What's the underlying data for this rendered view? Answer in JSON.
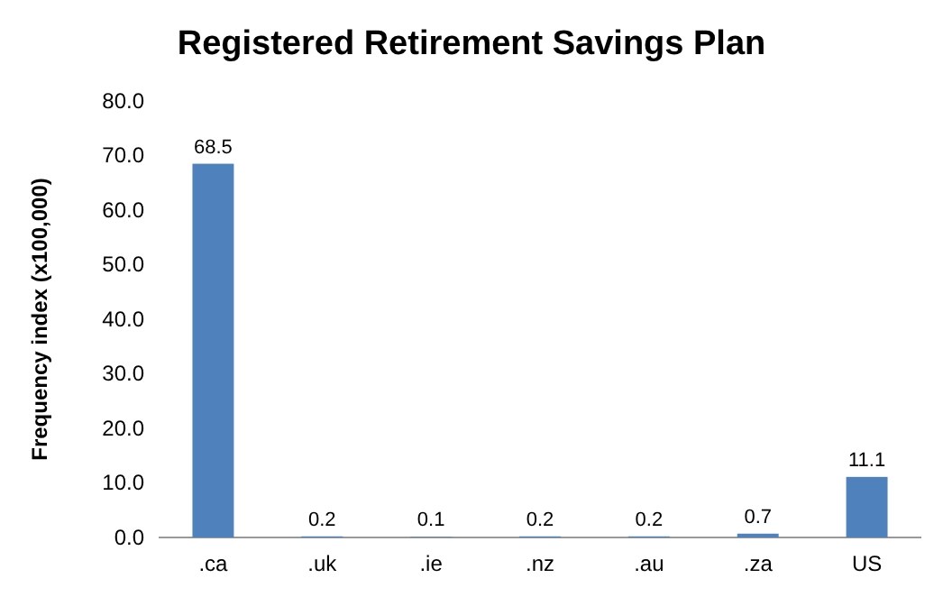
{
  "chart_data": {
    "type": "bar",
    "title": "Registered Retirement Savings Plan",
    "ylabel": "Frequency index (x100,000)",
    "categories": [
      ".ca",
      ".uk",
      ".ie",
      ".nz",
      ".au",
      ".za",
      "US"
    ],
    "values": [
      68.5,
      0.2,
      0.1,
      0.2,
      0.2,
      0.7,
      11.1
    ],
    "color": "#4f81bd",
    "data_labels": true,
    "ylim": [
      0,
      80
    ],
    "yticks": [
      {
        "value": 0,
        "label": "0.0"
      },
      {
        "value": 10,
        "label": "10.0"
      },
      {
        "value": 20,
        "label": "20.0"
      },
      {
        "value": 30,
        "label": "30.0"
      },
      {
        "value": 40,
        "label": "40.0"
      },
      {
        "value": 50,
        "label": "50.0"
      },
      {
        "value": 60,
        "label": "60.0"
      },
      {
        "value": 70,
        "label": "70.0"
      },
      {
        "value": 80,
        "label": "80.0"
      }
    ]
  }
}
